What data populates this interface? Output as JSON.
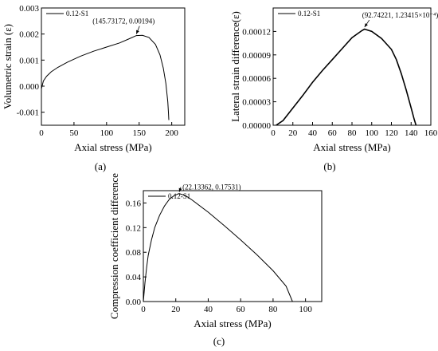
{
  "chart_data": [
    {
      "type": "line",
      "panel_label": "(a)",
      "xlabel": "Axial stress (MPa)",
      "ylabel": "Volumetric strain (ε)",
      "xlim": [
        0,
        220
      ],
      "ylim": [
        -0.0015,
        0.003
      ],
      "xticks": [
        0,
        50,
        100,
        150,
        200
      ],
      "xtick_labels": [
        "0",
        "50",
        "100",
        "150",
        "200"
      ],
      "yticks": [
        -0.001,
        0.0,
        0.001,
        0.002,
        0.003
      ],
      "ytick_labels": [
        "-0.001",
        "0.000",
        "0.001",
        "0.002",
        "0.003"
      ],
      "legend": "0.12-S1",
      "legend_position": "top-left",
      "annotation": {
        "text": "(145.73172, 0.00194)",
        "x": 145.73172,
        "y": 0.00194
      },
      "series": [
        {
          "name": "0.12-S1",
          "x": [
            0,
            3,
            8,
            15,
            25,
            40,
            60,
            80,
            100,
            120,
            135,
            145.7,
            155,
            165,
            175,
            182,
            187,
            191,
            194,
            195,
            195.5
          ],
          "y": [
            -0.0001,
            0.0002,
            0.00038,
            0.00055,
            0.00072,
            0.00092,
            0.00115,
            0.00134,
            0.0015,
            0.00166,
            0.00182,
            0.00194,
            0.00195,
            0.00187,
            0.0016,
            0.0012,
            0.0007,
            0.0001,
            -0.0006,
            -0.001,
            -0.0013
          ]
        }
      ]
    },
    {
      "type": "line",
      "panel_label": "(b)",
      "xlabel": "Axial stress (MPa)",
      "ylabel": "Lateral strain difference(ε)",
      "xlim": [
        0,
        160
      ],
      "ylim": [
        0,
        0.00015
      ],
      "xticks": [
        0,
        20,
        40,
        60,
        80,
        100,
        120,
        140,
        160
      ],
      "xtick_labels": [
        "0",
        "20",
        "40",
        "60",
        "80",
        "100",
        "120",
        "140",
        "160"
      ],
      "yticks": [
        0,
        3e-05,
        6e-05,
        9e-05,
        0.00012
      ],
      "ytick_labels": [
        "0.00000",
        "0.00003",
        "0.00006",
        "0.00009",
        "0.00012"
      ],
      "legend": "0.12-S1",
      "legend_position": "top-left",
      "annotation": {
        "text": "(92.74221, 1.23415×10⁻⁴)",
        "x": 92.74221,
        "y": 0.000123415
      },
      "series": [
        {
          "name": "0.12-S1",
          "x": [
            3,
            10,
            20,
            30,
            40,
            50,
            60,
            70,
            80,
            90,
            92.7,
            100,
            110,
            120,
            125,
            130,
            135,
            140,
            143,
            145
          ],
          "y": [
            0,
            6e-06,
            2.2e-05,
            3.8e-05,
            5.5e-05,
            7e-05,
            8.4e-05,
            9.8e-05,
            0.000112,
            0.000121,
            0.000123,
            0.00012,
            0.000111,
            9.7e-05,
            8.4e-05,
            6.6e-05,
            4.5e-05,
            2.2e-05,
            8e-06,
            0
          ]
        }
      ]
    },
    {
      "type": "line",
      "panel_label": "(c)",
      "xlabel": "Axial stress (MPa)",
      "ylabel": "Compression coefficient difference",
      "xlim": [
        0,
        110
      ],
      "ylim": [
        0,
        0.18
      ],
      "xticks": [
        0,
        20,
        40,
        60,
        80,
        100
      ],
      "xtick_labels": [
        "0",
        "20",
        "40",
        "60",
        "80",
        "100"
      ],
      "yticks": [
        0,
        0.04,
        0.08,
        0.12,
        0.16
      ],
      "ytick_labels": [
        "0.00",
        "0.04",
        "0.08",
        "0.12",
        "0.16"
      ],
      "legend": "0.12-S1",
      "legend_position": "top-left",
      "annotation": {
        "text": "(22.13362, 0.17531)",
        "x": 22.13362,
        "y": 0.17531
      },
      "series": [
        {
          "name": "0.12-S1",
          "x": [
            0,
            1,
            2,
            3,
            5,
            7,
            10,
            13,
            16,
            19,
            22.1,
            26,
            30,
            40,
            50,
            60,
            70,
            80,
            88,
            92
          ],
          "y": [
            0,
            0.03,
            0.055,
            0.075,
            0.1,
            0.12,
            0.14,
            0.155,
            0.166,
            0.172,
            0.1753,
            0.172,
            0.165,
            0.145,
            0.123,
            0.1,
            0.076,
            0.05,
            0.025,
            0
          ]
        }
      ]
    }
  ]
}
